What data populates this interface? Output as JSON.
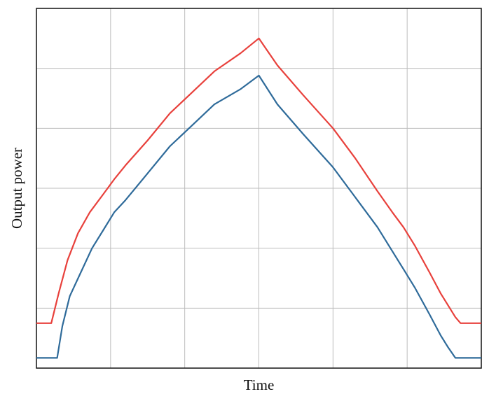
{
  "chart_data": {
    "type": "line",
    "title": "",
    "xlabel": "Time",
    "ylabel": "Output power",
    "xlim": [
      0,
      6
    ],
    "ylim": [
      0,
      6
    ],
    "grid": true,
    "tick_labels_visible": false,
    "legend": "none",
    "series": [
      {
        "color": "#e8413c",
        "x": [
          0,
          0.12,
          0.2,
          0.3,
          0.42,
          0.56,
          0.72,
          0.9,
          1.05,
          1.2,
          1.5,
          1.8,
          2.1,
          2.4,
          2.75,
          3.0,
          3.25,
          3.6,
          4.0,
          4.3,
          4.6,
          4.8,
          4.95,
          5.1,
          5.3,
          5.45,
          5.55,
          5.65,
          5.72,
          5.85,
          6.0
        ],
        "y": [
          0.75,
          0.75,
          0.75,
          1.25,
          1.8,
          2.25,
          2.6,
          2.9,
          3.15,
          3.38,
          3.8,
          4.25,
          4.6,
          4.95,
          5.25,
          5.5,
          5.05,
          4.55,
          4.0,
          3.5,
          2.95,
          2.6,
          2.35,
          2.05,
          1.6,
          1.25,
          1.05,
          0.85,
          0.75,
          0.75,
          0.75
        ]
      },
      {
        "color": "#2f6b9a",
        "x": [
          0,
          0.12,
          0.28,
          0.35,
          0.45,
          0.6,
          0.75,
          0.9,
          1.05,
          1.2,
          1.5,
          1.8,
          2.1,
          2.4,
          2.75,
          3.0,
          3.25,
          3.6,
          4.0,
          4.3,
          4.6,
          4.8,
          4.95,
          5.1,
          5.3,
          5.45,
          5.55,
          5.65,
          5.72,
          5.85,
          6.0
        ],
        "y": [
          0.17,
          0.17,
          0.17,
          0.7,
          1.2,
          1.6,
          2.0,
          2.3,
          2.6,
          2.8,
          3.25,
          3.7,
          4.05,
          4.4,
          4.65,
          4.88,
          4.4,
          3.9,
          3.35,
          2.85,
          2.35,
          1.95,
          1.65,
          1.35,
          0.9,
          0.55,
          0.35,
          0.17,
          0.17,
          0.17,
          0.17
        ]
      }
    ]
  }
}
